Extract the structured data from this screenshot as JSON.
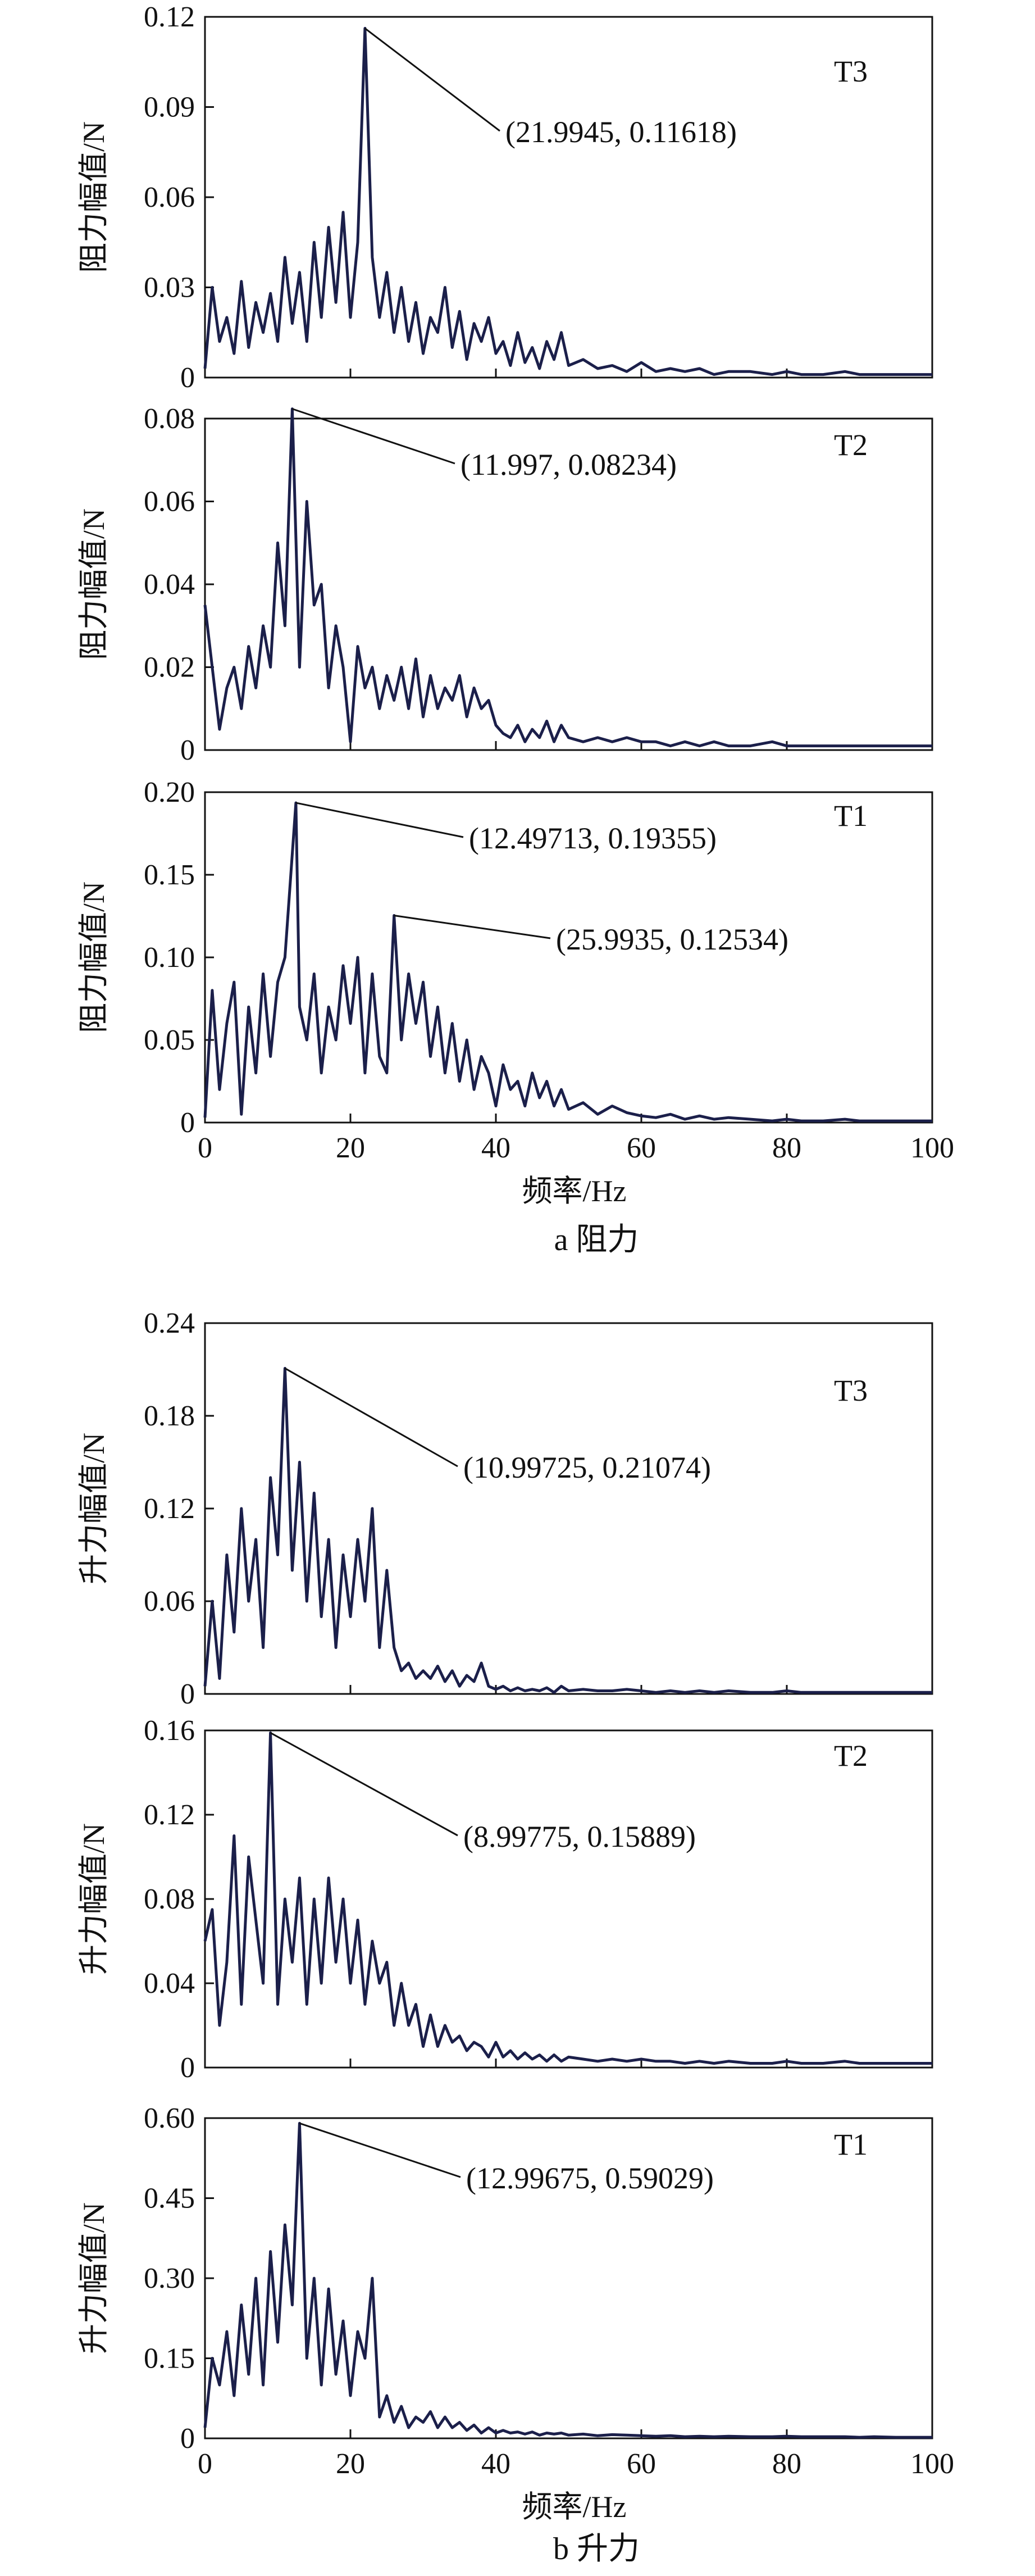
{
  "colors": {
    "line": "#1b1f4a",
    "axis": "#111111"
  },
  "chart_data": [
    {
      "type": "line",
      "tag": "T3",
      "ylabel": "阻力幅值/N",
      "ylim": [
        0,
        0.12
      ],
      "yticks": [
        "0",
        "0.03",
        "0.06",
        "0.09",
        "0.12"
      ],
      "xlim": [
        0,
        100
      ],
      "annotations": [
        {
          "text": "(21.9945, 0.11618)",
          "x": 21.9945,
          "y": 0.11618
        }
      ],
      "series": [
        {
          "x": [
            0,
            1,
            2,
            3,
            4,
            5,
            6,
            7,
            8,
            9,
            10,
            11,
            12,
            13,
            14,
            15,
            16,
            17,
            18,
            19,
            20,
            21,
            22,
            23,
            24,
            25,
            26,
            27,
            28,
            29,
            30,
            31,
            32,
            33,
            34,
            35,
            36,
            37,
            38,
            39,
            40,
            41,
            42,
            43,
            44,
            45,
            46,
            47,
            48,
            49,
            50,
            52,
            54,
            56,
            58,
            60,
            62,
            64,
            66,
            68,
            70,
            72,
            75,
            78,
            80,
            82,
            85,
            88,
            90,
            92,
            95,
            98,
            100
          ],
          "y": [
            0.003,
            0.03,
            0.012,
            0.02,
            0.008,
            0.032,
            0.01,
            0.025,
            0.015,
            0.028,
            0.012,
            0.04,
            0.018,
            0.035,
            0.012,
            0.045,
            0.02,
            0.05,
            0.025,
            0.055,
            0.02,
            0.045,
            0.11618,
            0.04,
            0.02,
            0.035,
            0.015,
            0.03,
            0.012,
            0.025,
            0.008,
            0.02,
            0.015,
            0.03,
            0.01,
            0.022,
            0.006,
            0.018,
            0.012,
            0.02,
            0.008,
            0.012,
            0.004,
            0.015,
            0.005,
            0.01,
            0.003,
            0.012,
            0.006,
            0.015,
            0.004,
            0.006,
            0.003,
            0.004,
            0.002,
            0.005,
            0.002,
            0.003,
            0.002,
            0.003,
            0.001,
            0.002,
            0.002,
            0.001,
            0.002,
            0.001,
            0.001,
            0.002,
            0.001,
            0.001,
            0.001,
            0.001,
            0.001
          ]
        }
      ]
    },
    {
      "type": "line",
      "tag": "T2",
      "ylabel": "阻力幅值/N",
      "ylim": [
        0,
        0.08
      ],
      "yticks": [
        "0",
        "0.02",
        "0.04",
        "0.06",
        "0.08"
      ],
      "xlim": [
        0,
        100
      ],
      "annotations": [
        {
          "text": "(11.997, 0.08234)",
          "x": 11.997,
          "y": 0.08234
        }
      ],
      "series": [
        {
          "x": [
            0,
            1,
            2,
            3,
            4,
            5,
            6,
            7,
            8,
            9,
            10,
            11,
            12,
            13,
            14,
            15,
            16,
            17,
            18,
            19,
            20,
            21,
            22,
            23,
            24,
            25,
            26,
            27,
            28,
            29,
            30,
            31,
            32,
            33,
            34,
            35,
            36,
            37,
            38,
            39,
            40,
            41,
            42,
            43,
            44,
            45,
            46,
            47,
            48,
            49,
            50,
            52,
            54,
            56,
            58,
            60,
            62,
            64,
            66,
            68,
            70,
            72,
            75,
            78,
            80,
            82,
            85,
            88,
            90,
            92,
            95,
            98,
            100
          ],
          "y": [
            0.035,
            0.02,
            0.005,
            0.015,
            0.02,
            0.01,
            0.025,
            0.015,
            0.03,
            0.02,
            0.05,
            0.03,
            0.08234,
            0.02,
            0.06,
            0.035,
            0.04,
            0.015,
            0.03,
            0.02,
            0.002,
            0.025,
            0.015,
            0.02,
            0.01,
            0.018,
            0.012,
            0.02,
            0.01,
            0.022,
            0.008,
            0.018,
            0.01,
            0.015,
            0.012,
            0.018,
            0.008,
            0.015,
            0.01,
            0.012,
            0.006,
            0.004,
            0.003,
            0.006,
            0.002,
            0.005,
            0.003,
            0.007,
            0.002,
            0.006,
            0.003,
            0.002,
            0.003,
            0.002,
            0.003,
            0.002,
            0.002,
            0.001,
            0.002,
            0.001,
            0.002,
            0.001,
            0.001,
            0.002,
            0.001,
            0.001,
            0.001,
            0.001,
            0.001,
            0.001,
            0.001,
            0.001,
            0.001
          ]
        }
      ]
    },
    {
      "type": "line",
      "tag": "T1",
      "ylabel": "阻力幅值/N",
      "ylim": [
        0,
        0.2
      ],
      "yticks": [
        "0",
        "0.05",
        "0.10",
        "0.15",
        "0.20"
      ],
      "xlim": [
        0,
        100
      ],
      "xticks": [
        "0",
        "20",
        "40",
        "60",
        "80",
        "100"
      ],
      "xlabel": "频率/Hz",
      "annotations": [
        {
          "text": "(12.49713, 0.19355)",
          "x": 12.49713,
          "y": 0.19355
        },
        {
          "text": "(25.9935, 0.12534)",
          "x": 25.9935,
          "y": 0.12534
        }
      ],
      "series": [
        {
          "x": [
            0,
            1,
            2,
            3,
            4,
            5,
            6,
            7,
            8,
            9,
            10,
            11,
            12.5,
            13,
            14,
            15,
            16,
            17,
            18,
            19,
            20,
            21,
            22,
            23,
            24,
            25,
            26,
            27,
            28,
            29,
            30,
            31,
            32,
            33,
            34,
            35,
            36,
            37,
            38,
            39,
            40,
            41,
            42,
            43,
            44,
            45,
            46,
            47,
            48,
            49,
            50,
            52,
            54,
            56,
            58,
            60,
            62,
            64,
            66,
            68,
            70,
            72,
            75,
            78,
            80,
            82,
            85,
            88,
            90,
            92,
            95,
            98,
            100
          ],
          "y": [
            0.003,
            0.08,
            0.02,
            0.06,
            0.085,
            0.005,
            0.07,
            0.03,
            0.09,
            0.04,
            0.085,
            0.1,
            0.19355,
            0.07,
            0.05,
            0.09,
            0.03,
            0.07,
            0.05,
            0.095,
            0.06,
            0.1,
            0.03,
            0.09,
            0.04,
            0.03,
            0.12534,
            0.05,
            0.09,
            0.06,
            0.085,
            0.04,
            0.07,
            0.03,
            0.06,
            0.025,
            0.05,
            0.02,
            0.04,
            0.03,
            0.01,
            0.035,
            0.02,
            0.025,
            0.01,
            0.03,
            0.015,
            0.025,
            0.01,
            0.02,
            0.008,
            0.012,
            0.005,
            0.01,
            0.006,
            0.004,
            0.003,
            0.005,
            0.002,
            0.004,
            0.002,
            0.003,
            0.002,
            0.001,
            0.002,
            0.001,
            0.001,
            0.002,
            0.001,
            0.001,
            0.001,
            0.001,
            0.001
          ]
        }
      ]
    },
    {
      "type": "line",
      "tag": "T3",
      "ylabel": "升力幅值/N",
      "ylim": [
        0,
        0.24
      ],
      "yticks": [
        "0",
        "0.06",
        "0.12",
        "0.18",
        "0.24"
      ],
      "xlim": [
        0,
        100
      ],
      "annotations": [
        {
          "text": "(10.99725, 0.21074)",
          "x": 10.99725,
          "y": 0.21074
        }
      ],
      "series": [
        {
          "x": [
            0,
            1,
            2,
            3,
            4,
            5,
            6,
            7,
            8,
            9,
            10,
            11,
            12,
            13,
            14,
            15,
            16,
            17,
            18,
            19,
            20,
            21,
            22,
            23,
            24,
            25,
            26,
            27,
            28,
            29,
            30,
            31,
            32,
            33,
            34,
            35,
            36,
            37,
            38,
            39,
            40,
            41,
            42,
            43,
            44,
            45,
            46,
            47,
            48,
            49,
            50,
            52,
            54,
            56,
            58,
            60,
            62,
            64,
            66,
            68,
            70,
            72,
            75,
            78,
            80,
            82,
            85,
            88,
            90,
            92,
            95,
            98,
            100
          ],
          "y": [
            0.005,
            0.06,
            0.01,
            0.09,
            0.04,
            0.12,
            0.06,
            0.1,
            0.03,
            0.14,
            0.09,
            0.21074,
            0.08,
            0.15,
            0.06,
            0.13,
            0.05,
            0.1,
            0.03,
            0.09,
            0.05,
            0.1,
            0.06,
            0.12,
            0.03,
            0.08,
            0.03,
            0.015,
            0.02,
            0.01,
            0.015,
            0.01,
            0.018,
            0.008,
            0.015,
            0.005,
            0.012,
            0.008,
            0.02,
            0.005,
            0.003,
            0.005,
            0.002,
            0.004,
            0.002,
            0.003,
            0.002,
            0.004,
            0.001,
            0.005,
            0.002,
            0.003,
            0.002,
            0.002,
            0.003,
            0.002,
            0.001,
            0.002,
            0.001,
            0.002,
            0.001,
            0.002,
            0.001,
            0.001,
            0.002,
            0.001,
            0.001,
            0.001,
            0.001,
            0.001,
            0.001,
            0.001,
            0.001
          ]
        }
      ]
    },
    {
      "type": "line",
      "tag": "T2",
      "ylabel": "升力幅值/N",
      "ylim": [
        0,
        0.16
      ],
      "yticks": [
        "0",
        "0.04",
        "0.08",
        "0.12",
        "0.16"
      ],
      "xlim": [
        0,
        100
      ],
      "annotations": [
        {
          "text": "(8.99775, 0.15889)",
          "x": 8.99775,
          "y": 0.15889
        }
      ],
      "series": [
        {
          "x": [
            0,
            1,
            2,
            3,
            4,
            5,
            6,
            7,
            8,
            9,
            10,
            11,
            12,
            13,
            14,
            15,
            16,
            17,
            18,
            19,
            20,
            21,
            22,
            23,
            24,
            25,
            26,
            27,
            28,
            29,
            30,
            31,
            32,
            33,
            34,
            35,
            36,
            37,
            38,
            39,
            40,
            41,
            42,
            43,
            44,
            45,
            46,
            47,
            48,
            49,
            50,
            52,
            54,
            56,
            58,
            60,
            62,
            64,
            66,
            68,
            70,
            72,
            75,
            78,
            80,
            82,
            85,
            88,
            90,
            92,
            95,
            98,
            100
          ],
          "y": [
            0.06,
            0.075,
            0.02,
            0.05,
            0.11,
            0.03,
            0.1,
            0.07,
            0.04,
            0.15889,
            0.03,
            0.08,
            0.05,
            0.09,
            0.03,
            0.08,
            0.04,
            0.09,
            0.05,
            0.08,
            0.04,
            0.07,
            0.03,
            0.06,
            0.04,
            0.05,
            0.02,
            0.04,
            0.02,
            0.03,
            0.01,
            0.025,
            0.01,
            0.02,
            0.012,
            0.015,
            0.008,
            0.012,
            0.01,
            0.005,
            0.012,
            0.005,
            0.008,
            0.004,
            0.007,
            0.004,
            0.006,
            0.003,
            0.006,
            0.003,
            0.005,
            0.004,
            0.003,
            0.004,
            0.003,
            0.004,
            0.003,
            0.003,
            0.002,
            0.003,
            0.002,
            0.003,
            0.002,
            0.002,
            0.003,
            0.002,
            0.002,
            0.003,
            0.002,
            0.002,
            0.002,
            0.002,
            0.002
          ]
        }
      ]
    },
    {
      "type": "line",
      "tag": "T1",
      "ylabel": "升力幅值/N",
      "ylim": [
        0,
        0.6
      ],
      "yticks": [
        "0",
        "0.15",
        "0.30",
        "0.45",
        "0.60"
      ],
      "xlim": [
        0,
        100
      ],
      "xticks": [
        "0",
        "20",
        "40",
        "60",
        "80",
        "100"
      ],
      "xlabel": "频率/Hz",
      "annotations": [
        {
          "text": "(12.99675, 0.59029)",
          "x": 12.99675,
          "y": 0.59029
        }
      ],
      "series": [
        {
          "x": [
            0,
            1,
            2,
            3,
            4,
            5,
            6,
            7,
            8,
            9,
            10,
            11,
            12,
            13,
            14,
            15,
            16,
            17,
            18,
            19,
            20,
            21,
            22,
            23,
            24,
            25,
            26,
            27,
            28,
            29,
            30,
            31,
            32,
            33,
            34,
            35,
            36,
            37,
            38,
            39,
            40,
            41,
            42,
            43,
            44,
            45,
            46,
            47,
            48,
            49,
            50,
            52,
            54,
            56,
            58,
            60,
            62,
            64,
            66,
            68,
            70,
            72,
            75,
            78,
            80,
            82,
            85,
            88,
            90,
            92,
            95,
            98,
            100
          ],
          "y": [
            0.02,
            0.15,
            0.1,
            0.2,
            0.08,
            0.25,
            0.12,
            0.3,
            0.1,
            0.35,
            0.18,
            0.4,
            0.25,
            0.59029,
            0.15,
            0.3,
            0.1,
            0.28,
            0.12,
            0.22,
            0.08,
            0.2,
            0.15,
            0.3,
            0.04,
            0.08,
            0.03,
            0.06,
            0.02,
            0.04,
            0.03,
            0.05,
            0.02,
            0.04,
            0.02,
            0.03,
            0.015,
            0.025,
            0.01,
            0.02,
            0.01,
            0.015,
            0.01,
            0.012,
            0.008,
            0.012,
            0.006,
            0.01,
            0.008,
            0.01,
            0.006,
            0.008,
            0.005,
            0.007,
            0.006,
            0.005,
            0.004,
            0.005,
            0.003,
            0.004,
            0.003,
            0.004,
            0.003,
            0.003,
            0.004,
            0.003,
            0.003,
            0.003,
            0.002,
            0.003,
            0.002,
            0.002,
            0.002
          ]
        }
      ]
    }
  ],
  "captions": {
    "a": "a  阻力",
    "b": "b  升力"
  }
}
